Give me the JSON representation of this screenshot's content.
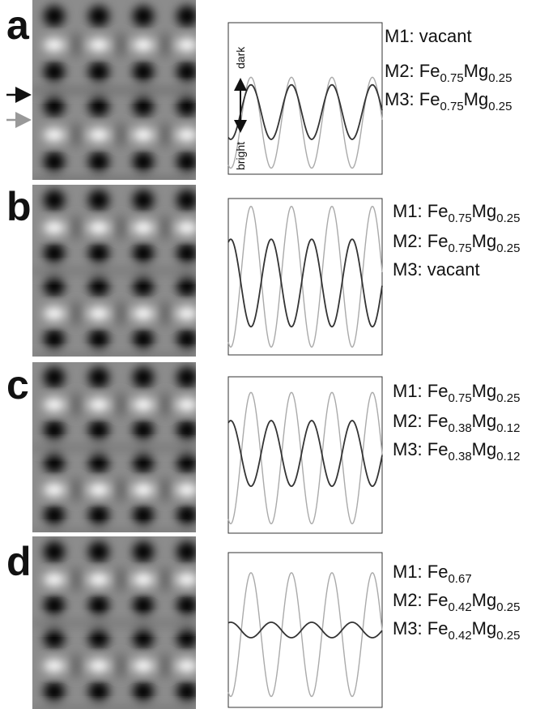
{
  "panels": [
    {
      "label": "a",
      "axis": {
        "top": "dark",
        "bottom": "bright"
      },
      "sites": [
        [
          "M1: vacant"
        ],
        [
          "M2: Fe",
          "0.75",
          "Mg",
          "0.25"
        ],
        [
          "M3: Fe",
          "0.75",
          "Mg",
          "0.25"
        ]
      ]
    },
    {
      "label": "b",
      "sites": [
        [
          "M1: Fe",
          "0.75",
          "Mg",
          "0.25"
        ],
        [
          "M2: Fe",
          "0.75",
          "Mg",
          "0.25"
        ],
        [
          "M3: vacant"
        ]
      ]
    },
    {
      "label": "c",
      "sites": [
        [
          "M1: Fe",
          "0.75",
          "Mg",
          "0.25"
        ],
        [
          "M2: Fe",
          "0.38",
          "Mg",
          "0.12"
        ],
        [
          "M3: Fe",
          "0.38",
          "Mg",
          "0.12"
        ]
      ]
    },
    {
      "label": "d",
      "sites": [
        [
          "M1: Fe",
          "0.67"
        ],
        [
          "M2: Fe",
          "0.42",
          "Mg",
          "0.25"
        ],
        [
          "M3: Fe",
          "0.42",
          "Mg",
          "0.25"
        ]
      ]
    }
  ]
}
